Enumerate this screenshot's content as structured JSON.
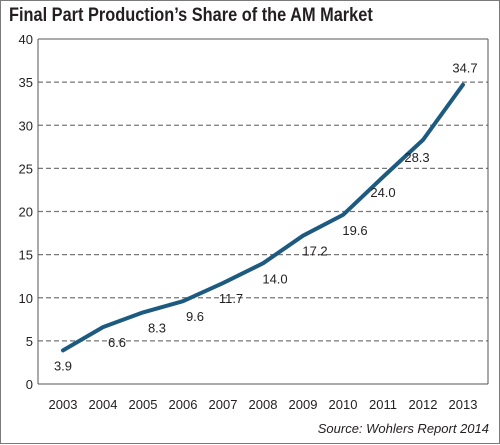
{
  "chart_data": {
    "type": "line",
    "title": "Final Part Production’s Share of the AM Market",
    "source": "Source: Wohlers Report 2014",
    "xlabel": "",
    "ylabel": "",
    "x": [
      "2003",
      "2004",
      "2005",
      "2006",
      "2007",
      "2008",
      "2009",
      "2010",
      "2011",
      "2012",
      "2013"
    ],
    "series": [
      {
        "values": [
          3.9,
          6.6,
          8.3,
          9.6,
          11.7,
          14.0,
          17.2,
          19.6,
          24.0,
          28.3,
          34.7
        ],
        "labels": [
          "3.9",
          "6.6",
          "8.3",
          "9.6",
          "11.7",
          "14.0",
          "17.2",
          "19.6",
          "24.0",
          "28.3",
          "34.7"
        ]
      }
    ],
    "ylim": [
      0,
      40
    ],
    "yticks": [
      0,
      5,
      10,
      15,
      20,
      25,
      30,
      35,
      40
    ],
    "grid": "horizontal-dashed",
    "line_color": "#1d5a80",
    "grid_color": "#777777"
  }
}
